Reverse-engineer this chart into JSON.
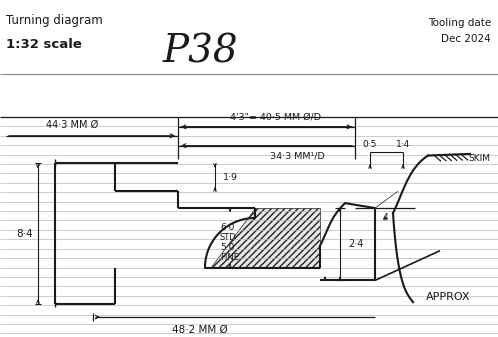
{
  "title": "P38",
  "subtitle_left": "Turning diagram",
  "scale_text": "1:32 scale",
  "tooling_date_line1": "Tooling date",
  "tooling_date_line2": "Dec 2024",
  "dim_44_3": "44·3 MM Ø",
  "dim_43": "4'3\"= 40·5 MM Ø/D",
  "dim_34_3": "34·3 MM ¹/D",
  "dim_1_9": "1·9",
  "dim_8_4": "8·4",
  "dim_6_0": "6·0",
  "dim_std": "STD",
  "dim_5_0": "5·0",
  "dim_fine": "FINE",
  "dim_0_5": "0·5",
  "dim_1_4": "1·4",
  "dim_2_4": "2·4",
  "dim_skim": "SKIM",
  "dim_approx": "APPROX",
  "dim_48_2": "48·2 MM Ø",
  "bg_color": "#ffffff",
  "line_color": "#1a1a1a",
  "hatch_color": "#222222",
  "ruled_line_color": "#b0b8c8"
}
